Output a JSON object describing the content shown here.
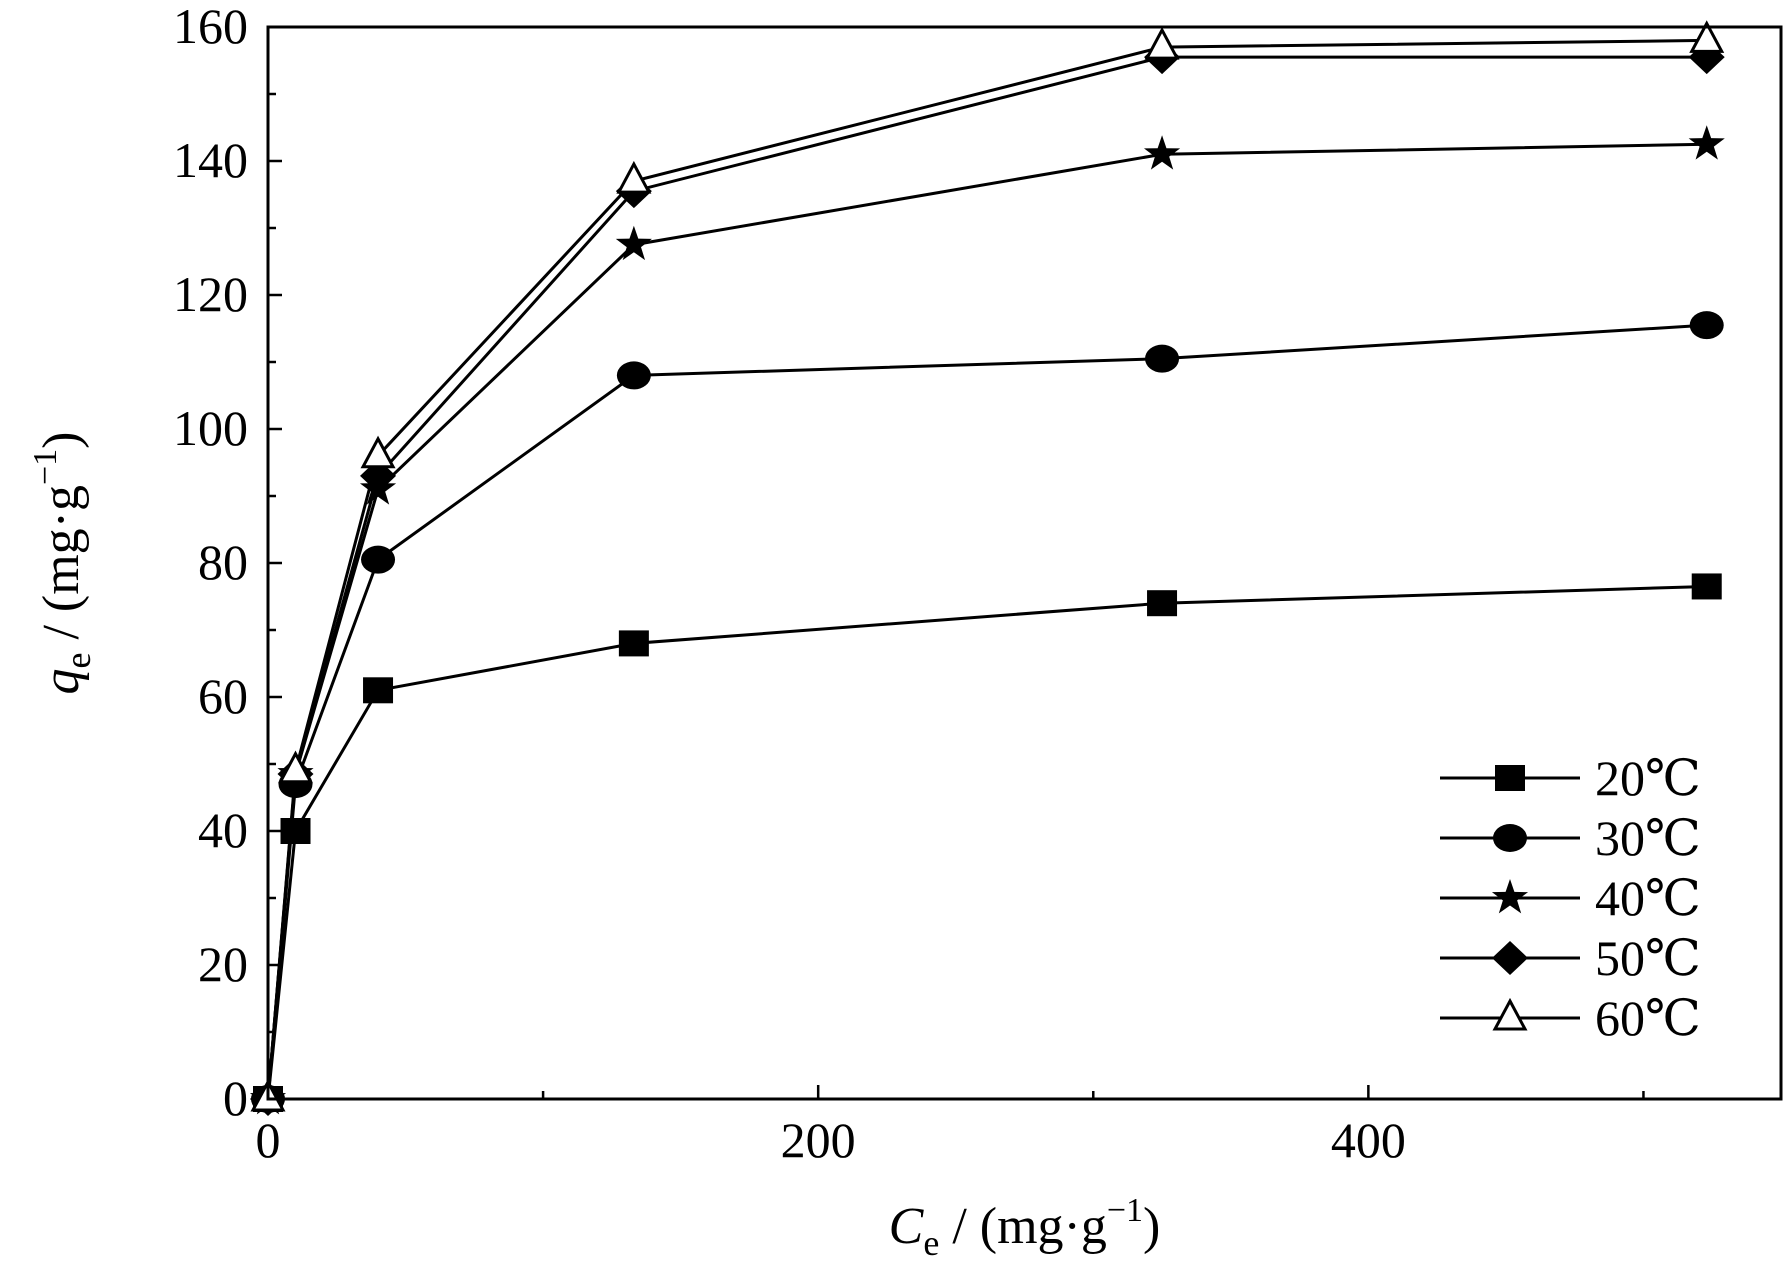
{
  "chart_data": {
    "type": "line",
    "xlabel": {
      "main": "C",
      "sub": "e",
      "unit_open": " / (mg·g",
      "unit_sup": "−1",
      "unit_close": ")"
    },
    "ylabel": {
      "main": "q",
      "sub": "e",
      "unit_open": " / (mg·g",
      "unit_sup": "−1",
      "unit_close": ")"
    },
    "xlim": [
      0,
      550
    ],
    "ylim": [
      0,
      160
    ],
    "x_ticks": [
      0,
      200,
      400
    ],
    "x_tick_labels": [
      "0",
      "200",
      "400"
    ],
    "y_ticks": [
      0,
      20,
      40,
      60,
      80,
      100,
      120,
      140,
      160
    ],
    "y_tick_labels": [
      "0",
      "20",
      "40",
      "60",
      "80",
      "100",
      "120",
      "140",
      "160"
    ],
    "x_minor_step": 100,
    "y_minor_step": 10,
    "grid": false,
    "legend_position": "bottom-right",
    "series": [
      {
        "name": "20℃",
        "marker": "square",
        "x": [
          0,
          10,
          40,
          133,
          325,
          523
        ],
        "y": [
          0,
          40,
          61,
          68,
          74,
          76.5
        ]
      },
      {
        "name": "30℃",
        "marker": "circle",
        "x": [
          0,
          10,
          40,
          133,
          325,
          523
        ],
        "y": [
          0,
          47,
          80.5,
          108,
          110.5,
          115.5
        ]
      },
      {
        "name": "40℃",
        "marker": "star",
        "x": [
          0,
          10,
          40,
          133,
          325,
          523
        ],
        "y": [
          0,
          48.5,
          91,
          127.5,
          141,
          142.5
        ]
      },
      {
        "name": "50℃",
        "marker": "diamond",
        "x": [
          0,
          10,
          40,
          133,
          325,
          523
        ],
        "y": [
          0,
          48.5,
          93,
          135.5,
          155.5,
          155.5
        ]
      },
      {
        "name": "60℃",
        "marker": "triangle-open",
        "x": [
          0,
          10,
          40,
          133,
          325,
          523
        ],
        "y": [
          0,
          49,
          96,
          137,
          157,
          158
        ]
      }
    ]
  }
}
